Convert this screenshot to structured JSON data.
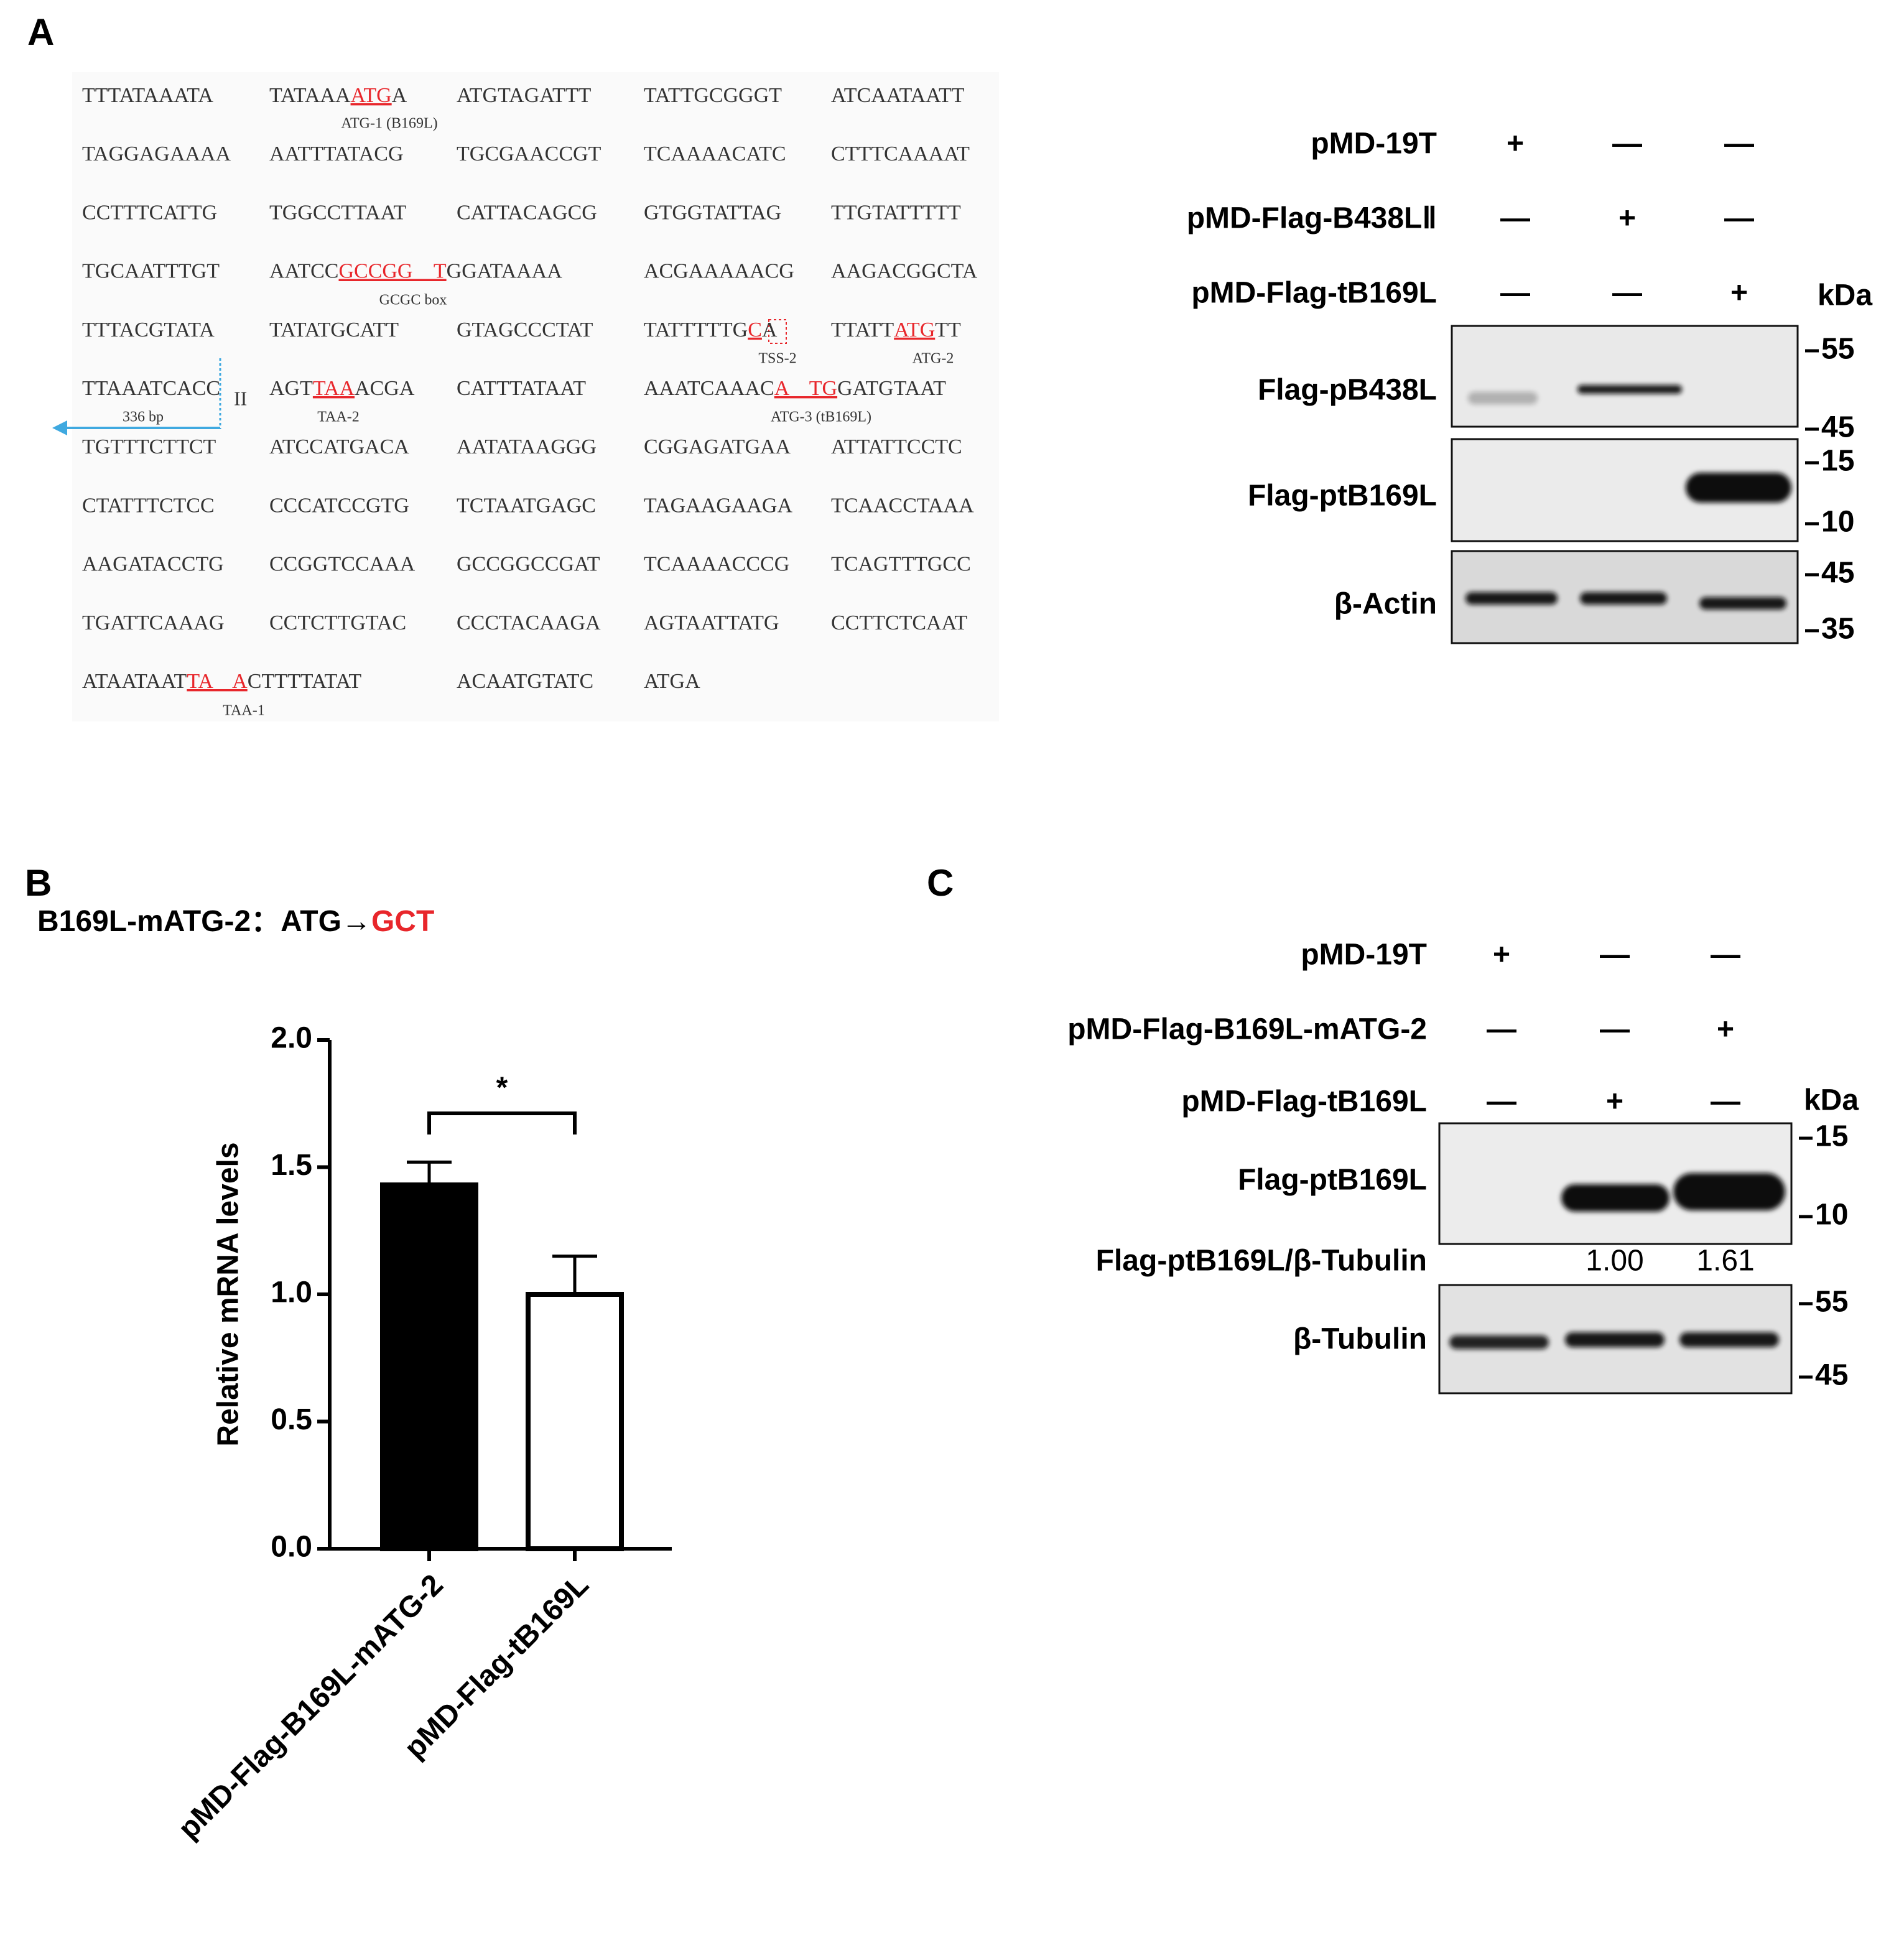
{
  "panel_labels": [
    "A",
    "B",
    "C"
  ],
  "panel_a": {
    "sequence": [
      [
        [
          "TTTATAAATA"
        ],
        [
          "TATAAA",
          {
            "text": "ATG",
            "color": "#e8262b"
          },
          "A"
        ],
        [
          "ATGTAGATTT"
        ],
        [
          "TATTGCGGGT"
        ],
        [
          "ATCAATAATT"
        ]
      ],
      [
        [
          "TAGGAGAAAA"
        ],
        [
          "AATTTATACG"
        ],
        [
          "TGCGAACCGT"
        ],
        [
          "TCAAAACATC"
        ],
        [
          "CTTTCAAAAT"
        ]
      ],
      [
        [
          "CCTTTCATTG"
        ],
        [
          "TGGCCTTAAT"
        ],
        [
          "CATTACAGCG"
        ],
        [
          "GTGGTATTAG"
        ],
        [
          "TTGTATTTTT"
        ]
      ],
      [
        [
          "TGCAATTTGT"
        ],
        [
          "AATCC",
          {
            "text": "GCCGG    T",
            "color": "#e8262b"
          },
          "GGATAAAA"
        ],
        [
          "ACGAAAAACG"
        ],
        [
          "AAGACGGCTA"
        ]
      ],
      [
        [
          "TTTACGTATA"
        ],
        [
          "TATATGCATT"
        ],
        [
          "GTAGCCCTAT"
        ],
        [
          "TATTTTTG",
          {
            "text": "C",
            "color": "#e8262b"
          },
          "A"
        ],
        [
          "TTATT",
          {
            "text": "ATG",
            "color": "#e8262b"
          },
          "TT"
        ]
      ],
      [
        [
          "TTAAATCACC"
        ],
        [
          "AGT",
          {
            "text": "TAA",
            "color": "#e8262b"
          },
          "ACGA"
        ],
        [
          "CATTTATAAT"
        ],
        [
          "AAATCAAAC",
          {
            "text": "A    TG",
            "color": "#e8262b"
          },
          "GATGTAAT"
        ]
      ],
      [
        [
          "TGTTTCTTCT"
        ],
        [
          "ATCCATGACA"
        ],
        [
          "AATATAAGGG"
        ],
        [
          "CGGAGATGAA"
        ],
        [
          "ATTATTCCTC"
        ]
      ],
      [
        [
          "CTATTTCTCC"
        ],
        [
          "CCCATCCGTG"
        ],
        [
          "TCTAATGAGC"
        ],
        [
          "TAGAAGAAGA"
        ],
        [
          "TCAACCTAAA"
        ]
      ],
      [
        [
          "AAGATACCTG"
        ],
        [
          "CCGGTCCAAA"
        ],
        [
          "GCCGGCCGAT"
        ],
        [
          "TCAAAACCCG"
        ],
        [
          "TCAGTTTGCC"
        ]
      ],
      [
        [
          "TGATTCAAAG"
        ],
        [
          "CCTCTTGTAC"
        ],
        [
          "CCCTACAAGA"
        ],
        [
          "AGTAATTATG"
        ],
        [
          "CCTTCTCAAT"
        ]
      ],
      [
        [
          "ATAATAAT",
          {
            "text": "TA    A",
            "color": "#e8262b"
          },
          "CTTTTATAT"
        ],
        [
          "ACAATGTATC"
        ],
        [
          "ATGA"
        ]
      ]
    ],
    "annotations": {
      "atg1": "ATG-1 (B169L)",
      "gcgc": "GCGC box",
      "tss2": "TSS-2",
      "atg2": "ATG-2",
      "length": "336 bp",
      "numeral": "II",
      "taa2": "TAA-2",
      "atg3": "ATG-3 (tB169L)",
      "taa1": "TAA-1"
    },
    "blot": {
      "conditions": [
        {
          "label": "pMD-19T",
          "lanes": [
            "+",
            "—",
            "—"
          ]
        },
        {
          "label": "pMD-Flag-B438LⅡ",
          "lanes": [
            "—",
            "+",
            "—"
          ]
        },
        {
          "label": "pMD-Flag-tB169L",
          "lanes": [
            "—",
            "—",
            "+"
          ]
        }
      ],
      "unit": "kDa",
      "panels": [
        {
          "label": "Flag-pB438L",
          "markers": [
            55,
            45
          ]
        },
        {
          "label": "Flag-ptB169L",
          "markers": [
            15,
            10
          ]
        },
        {
          "label": "β-Actin",
          "markers": [
            45,
            35
          ]
        }
      ]
    }
  },
  "chart_data": {
    "type": "bar",
    "title": "B169L-mATG-2：ATG→",
    "title_highlight": "GCT",
    "title_highlight_color": "#e8262b",
    "ylabel": "Relative mRNA levels",
    "categories": [
      "pMD-Flag-B169L-mATG-2",
      "pMD-Flag-tB169L"
    ],
    "values": [
      1.43,
      1.0
    ],
    "errors": [
      0.09,
      0.15
    ],
    "colors": [
      "#000000",
      "#ffffff"
    ],
    "ylim": [
      0,
      2
    ],
    "yticks": [
      {
        "value": 0,
        "label": "0.0"
      },
      0.5,
      {
        "value": 1,
        "label": "1.0"
      },
      1.5,
      {
        "value": 2,
        "label": "2.0"
      }
    ],
    "significance": "*"
  },
  "panel_c": {
    "blot": {
      "conditions": [
        {
          "label": "pMD-19T",
          "lanes": [
            "+",
            "—",
            "—"
          ]
        },
        {
          "label": "pMD-Flag-B169L-mATG-2",
          "lanes": [
            "—",
            "—",
            "+"
          ]
        },
        {
          "label": "pMD-Flag-tB169L",
          "lanes": [
            "—",
            "+",
            "—"
          ]
        }
      ],
      "unit": "kDa",
      "panels": [
        {
          "label": "Flag-ptB169L",
          "markers": [
            15,
            10
          ]
        },
        {
          "label": "β-Tubulin",
          "markers": [
            55,
            45
          ]
        }
      ],
      "ratio": {
        "label": "Flag-ptB169L/β-Tubulin",
        "values": [
          null,
          "1.00",
          "1.61"
        ]
      }
    }
  }
}
